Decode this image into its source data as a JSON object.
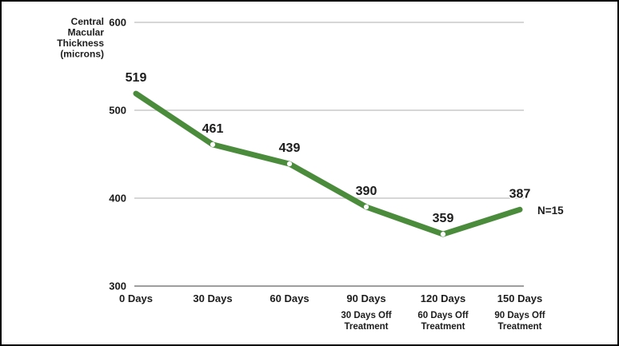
{
  "chart_data": {
    "type": "line",
    "title": "",
    "ylabel_lines": [
      "Central",
      "Macular",
      "Thickness",
      "(microns)"
    ],
    "categories": [
      "0 Days",
      "30 Days",
      "60 Days",
      "90 Days",
      "120 Days",
      "150 Days"
    ],
    "category_sublabels": [
      [],
      [],
      [],
      [
        "30 Days Off",
        "Treatment"
      ],
      [
        "60 Days Off",
        "Treatment"
      ],
      [
        "90 Days Off",
        "Treatment"
      ]
    ],
    "values": [
      519,
      461,
      439,
      390,
      359,
      387
    ],
    "data_labels": [
      "519",
      "461",
      "439",
      "390",
      "359",
      "387"
    ],
    "yticks": [
      600,
      500,
      400,
      300
    ],
    "ylim": [
      300,
      600
    ],
    "annotation": "N=15",
    "grid": true,
    "legend_position": "none",
    "colors": {
      "line": "#4a8c3b",
      "gridline": "#c9c9c9",
      "axisline": "#9e9e9e",
      "text": "#1c1c1c",
      "marker_gap": "#ffffff"
    }
  }
}
